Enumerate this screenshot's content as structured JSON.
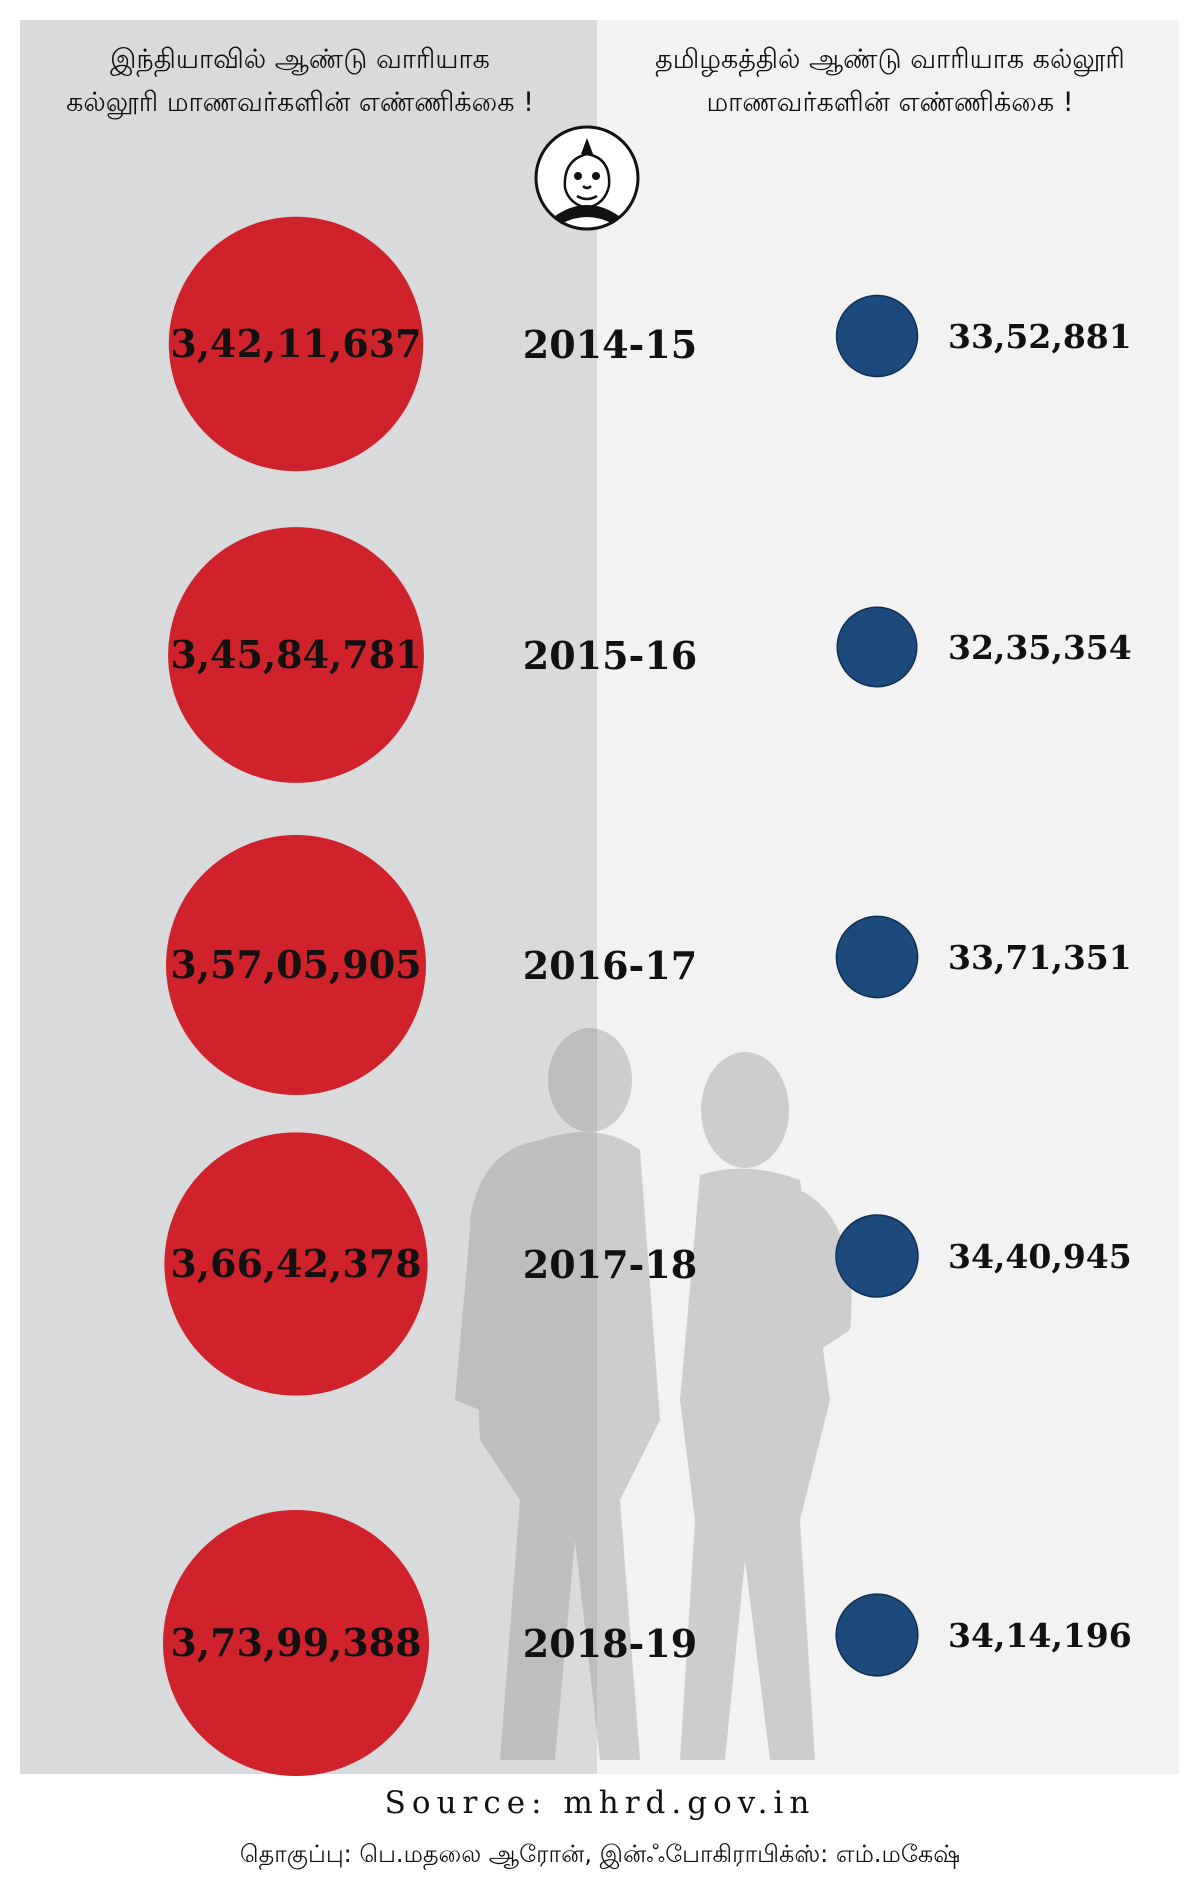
{
  "header": {
    "left_title": "இந்தியாவில் ஆண்டு வாரியாக கல்லூரி மாணவர்களின் எண்ணிக்கை !",
    "right_title": "தமிழகத்தில் ஆண்டு வாரியாக கல்லூரி மாணவர்களின் எண்ணிக்கை !"
  },
  "footer": {
    "source": "Source: mhrd.gov.in",
    "credits": "தொகுப்பு: பெ.மதலை ஆரோன், இன்ஃபோகிராபிக்ஸ்: எம்.மகேஷ்"
  },
  "colors": {
    "india": "#d0222b",
    "tamilnadu": "#1c4a7c",
    "left_panel": "#d9dadb",
    "right_panel": "#f2f2f2"
  },
  "chart_data": {
    "type": "bubble",
    "categories": [
      "2014-15",
      "2015-16",
      "2016-17",
      "2017-18",
      "2018-19"
    ],
    "series": [
      {
        "values": [
          34211637,
          34584781,
          35705905,
          36642378,
          37399388
        ],
        "labels": [
          "3,42,11,637",
          "3,45,84,781",
          "3,57,05,905",
          "3,66,42,378",
          "3,73,99,388"
        ],
        "color": "#d0222b"
      },
      {
        "values": [
          3352881,
          3235354,
          3371351,
          3440945,
          3414196
        ],
        "labels": [
          "33,52,881",
          "32,35,354",
          "33,71,351",
          "34,40,945",
          "34,14,196"
        ],
        "color": "#1c4a7c"
      }
    ]
  }
}
